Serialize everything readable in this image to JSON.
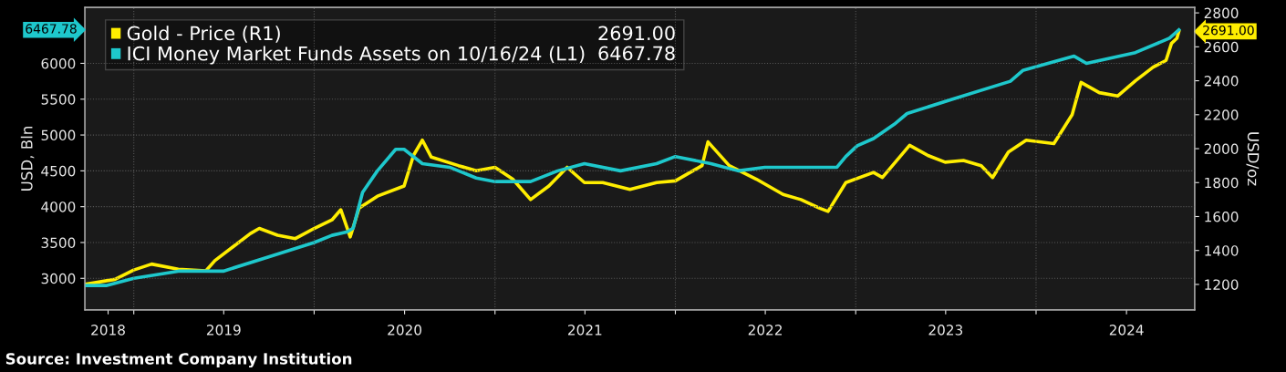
{
  "chart_data": {
    "type": "line",
    "ylabel": "USD, Bln",
    "y2label": "USD/oz",
    "xlim": [
      "2018-09-24",
      "2024-11-17"
    ],
    "xticks": [
      {
        "value": "2018-11-10",
        "label": "2018"
      },
      {
        "value": "2019-01-01",
        "label": null
      },
      {
        "value": "2019-07-02",
        "label": "2019"
      },
      {
        "value": "2020-01-01",
        "label": null
      },
      {
        "value": "2020-07-02",
        "label": "2020"
      },
      {
        "value": "2021-01-01",
        "label": null
      },
      {
        "value": "2021-07-02",
        "label": "2021"
      },
      {
        "value": "2022-01-01",
        "label": null
      },
      {
        "value": "2022-07-02",
        "label": "2022"
      },
      {
        "value": "2023-01-01",
        "label": null
      },
      {
        "value": "2023-07-02",
        "label": "2023"
      },
      {
        "value": "2024-01-01",
        "label": null
      },
      {
        "value": "2024-07-02",
        "label": "2024"
      }
    ],
    "ylim": [
      2560,
      6780
    ],
    "yticks": [
      3000,
      3500,
      4000,
      4500,
      5000,
      5500,
      6000
    ],
    "y2lim": [
      1050,
      2832
    ],
    "y2ticks": [
      1200,
      1400,
      1600,
      1800,
      2000,
      2200,
      2400,
      2600,
      2800
    ],
    "grid": true,
    "legend": "top left",
    "line_style": "solid",
    "marker": "none",
    "series": [
      {
        "name": "Gold - Price (R1)",
        "color": "#ffee00",
        "axis": "y2",
        "x": [
          "2018-09-24",
          "2018-11-24",
          "2019-01-01",
          "2019-02-06",
          "2019-04-01",
          "2019-05-27",
          "2019-06-14",
          "2019-07-20",
          "2019-08-25",
          "2019-09-12",
          "2019-10-19",
          "2019-11-24",
          "2020-01-01",
          "2020-02-06",
          "2020-02-24",
          "2020-03-14",
          "2020-04-01",
          "2020-05-08",
          "2020-07-01",
          "2020-07-20",
          "2020-08-07",
          "2020-08-25",
          "2020-10-19",
          "2020-11-24",
          "2021-01-01",
          "2021-02-06",
          "2021-03-14",
          "2021-04-20",
          "2021-05-27",
          "2021-07-01",
          "2021-08-07",
          "2021-10-01",
          "2021-11-24",
          "2022-01-01",
          "2022-02-24",
          "2022-03-08",
          "2022-04-20",
          "2022-06-14",
          "2022-08-07",
          "2022-09-12",
          "2022-10-19",
          "2022-11-06",
          "2022-12-12",
          "2023-02-06",
          "2023-02-24",
          "2023-04-20",
          "2023-05-27",
          "2023-07-01",
          "2023-08-07",
          "2023-09-12",
          "2023-10-05",
          "2023-11-06",
          "2023-12-12",
          "2024-02-06",
          "2024-03-14",
          "2024-04-01",
          "2024-05-08",
          "2024-06-14",
          "2024-07-20",
          "2024-08-25",
          "2024-09-20",
          "2024-10-01",
          "2024-10-12",
          "2024-10-16"
        ],
        "values": [
          1200,
          1230,
          1285,
          1320,
          1290,
          1280,
          1340,
          1420,
          1500,
          1530,
          1490,
          1470,
          1530,
          1580,
          1640,
          1480,
          1650,
          1720,
          1780,
          1960,
          2050,
          1950,
          1900,
          1870,
          1890,
          1820,
          1700,
          1780,
          1890,
          1800,
          1800,
          1760,
          1800,
          1810,
          1900,
          2040,
          1900,
          1820,
          1730,
          1700,
          1650,
          1630,
          1800,
          1860,
          1830,
          2020,
          1960,
          1920,
          1930,
          1900,
          1830,
          1980,
          2050,
          2030,
          2200,
          2390,
          2330,
          2310,
          2400,
          2480,
          2520,
          2620,
          2650,
          2691.0
        ]
      },
      {
        "name": "ICI Money Market Funds Assets on 10/16/24 (L1)",
        "color": "#1ec8cc",
        "x": [
          "2018-09-24",
          "2018-11-06",
          "2019-01-01",
          "2019-04-01",
          "2019-07-01",
          "2019-10-01",
          "2020-01-01",
          "2020-02-06",
          "2020-03-08",
          "2020-03-20",
          "2020-04-08",
          "2020-05-08",
          "2020-06-14",
          "2020-07-01",
          "2020-08-07",
          "2020-10-01",
          "2020-11-24",
          "2021-01-01",
          "2021-03-14",
          "2021-05-08",
          "2021-07-01",
          "2021-09-12",
          "2021-11-24",
          "2022-01-01",
          "2022-03-14",
          "2022-05-08",
          "2022-07-01",
          "2022-09-12",
          "2022-11-24",
          "2022-12-12",
          "2023-01-04",
          "2023-02-06",
          "2023-03-20",
          "2023-04-15",
          "2023-07-16",
          "2023-11-10",
          "2023-12-05",
          "2024-03-18",
          "2024-04-12",
          "2024-07-20",
          "2024-09-27",
          "2024-10-16"
        ],
        "values": [
          2900,
          2900,
          3000,
          3100,
          3100,
          3300,
          3500,
          3600,
          3650,
          3700,
          4200,
          4500,
          4800,
          4800,
          4600,
          4550,
          4400,
          4350,
          4350,
          4500,
          4600,
          4500,
          4600,
          4700,
          4600,
          4500,
          4550,
          4550,
          4550,
          4700,
          4850,
          4950,
          5150,
          5300,
          5500,
          5750,
          5900,
          6100,
          6000,
          6150,
          6350,
          6467.78
        ]
      }
    ],
    "annotations": [
      "2691.00",
      "6467.78",
      "Source: Investment Company Institution"
    ]
  }
}
